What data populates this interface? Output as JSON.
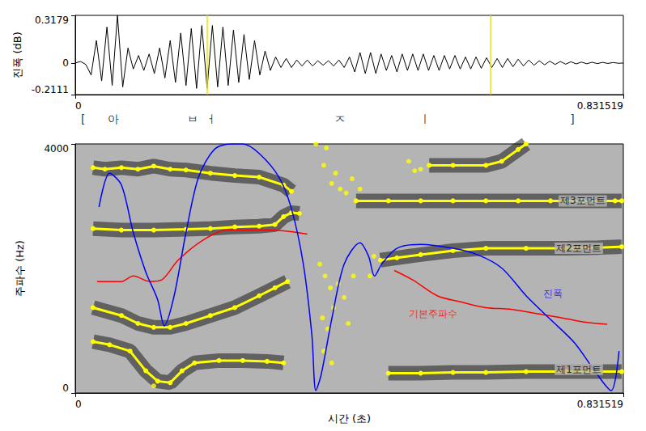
{
  "chart_data": [
    {
      "type": "line",
      "ylabel": "진폭 (dB)",
      "xlim": [
        0,
        0.831519
      ],
      "xticks": [
        0,
        0.831519
      ],
      "ylim": [
        -0.2111,
        0.3179
      ],
      "yticks": [
        -0.2111,
        0,
        0.3179
      ],
      "grid": false,
      "cursors": [
        0.203,
        0.629
      ],
      "transcription": [
        {
          "x": 0.012,
          "text": "["
        },
        {
          "x": 0.058,
          "text": "아"
        },
        {
          "x": 0.178,
          "text": "ㅂ"
        },
        {
          "x": 0.206,
          "text": "ㅓ"
        },
        {
          "x": 0.402,
          "text": "ㅈ"
        },
        {
          "x": 0.531,
          "text": "ㅣ"
        },
        {
          "x": 0.754,
          "text": "]"
        }
      ],
      "series": [
        {
          "color": "#000000",
          "line_style": "solid",
          "marker": "none",
          "x": [
            0,
            0.008,
            0.016,
            0.024,
            0.032,
            0.04,
            0.048,
            0.056,
            0.064,
            0.072,
            0.08,
            0.088,
            0.096,
            0.104,
            0.112,
            0.12,
            0.128,
            0.136,
            0.144,
            0.152,
            0.16,
            0.168,
            0.176,
            0.184,
            0.192,
            0.2,
            0.208,
            0.216,
            0.224,
            0.232,
            0.24,
            0.248,
            0.256,
            0.264,
            0.272,
            0.28,
            0.288,
            0.296,
            0.304,
            0.312,
            0.32,
            0.328,
            0.336,
            0.344,
            0.352,
            0.36,
            0.368,
            0.376,
            0.384,
            0.392,
            0.4,
            0.408,
            0.416,
            0.424,
            0.432,
            0.44,
            0.448,
            0.456,
            0.464,
            0.472,
            0.48,
            0.488,
            0.496,
            0.504,
            0.512,
            0.52,
            0.528,
            0.536,
            0.544,
            0.552,
            0.56,
            0.568,
            0.576,
            0.584,
            0.592,
            0.6,
            0.608,
            0.616,
            0.624,
            0.632,
            0.64,
            0.648,
            0.656,
            0.664,
            0.672,
            0.68,
            0.688,
            0.696,
            0.704,
            0.712,
            0.72,
            0.728,
            0.736,
            0.744,
            0.752,
            0.76,
            0.768,
            0.776,
            0.784,
            0.792,
            0.8,
            0.808,
            0.816,
            0.824,
            0.8315
          ],
          "values": [
            0,
            0.01,
            -0.01,
            -0.08,
            0.15,
            -0.12,
            0.24,
            -0.15,
            0.3179,
            -0.16,
            0.1,
            -0.04,
            0.05,
            -0.05,
            0.06,
            -0.07,
            0.1,
            -0.1,
            0.15,
            -0.13,
            0.2,
            -0.15,
            0.23,
            -0.17,
            0.25,
            -0.17,
            0.25,
            -0.16,
            0.24,
            -0.15,
            0.22,
            -0.13,
            0.19,
            -0.11,
            0.15,
            -0.08,
            0.08,
            -0.05,
            0.04,
            -0.03,
            0.03,
            -0.03,
            0.02,
            -0.02,
            0.02,
            -0.02,
            0.015,
            -0.015,
            0.015,
            -0.02,
            0.02,
            -0.03,
            0.04,
            -0.06,
            0.07,
            -0.07,
            0.07,
            -0.07,
            0.06,
            -0.05,
            0.05,
            -0.06,
            0.06,
            -0.05,
            0.06,
            -0.05,
            0.06,
            -0.05,
            0.05,
            -0.05,
            0.05,
            -0.04,
            0.05,
            -0.04,
            0.04,
            -0.04,
            0.04,
            -0.035,
            0.035,
            -0.03,
            0.03,
            -0.03,
            0.03,
            -0.025,
            0.025,
            -0.02,
            0.02,
            -0.015,
            0.015,
            -0.012,
            0.012,
            -0.01,
            0.01,
            -0.008,
            0.008,
            -0.006,
            0.006,
            -0.005,
            0.005,
            -0.004,
            0.004,
            -0.003,
            0.003,
            -0.002,
            0
          ]
        }
      ]
    },
    {
      "type": "line",
      "xlabel": "시간 (초)",
      "ylabel": "주파수 (Hz)",
      "xlim": [
        0,
        0.831519
      ],
      "xticks": [
        0,
        0.831519
      ],
      "ylim": [
        0,
        4000
      ],
      "yticks": [
        0,
        4000
      ],
      "grid": false,
      "annotations": [
        {
          "x": 0.77,
          "y": 3086,
          "text": "제3포먼트",
          "color": "#000000"
        },
        {
          "x": 0.764,
          "y": 2324,
          "text": "제2포먼트",
          "color": "#000000"
        },
        {
          "x": 0.764,
          "y": 381,
          "text": "제1포먼트",
          "color": "#000000"
        },
        {
          "x": 0.725,
          "y": 1600,
          "text": "진폭",
          "color": "#0000ff"
        },
        {
          "x": 0.543,
          "y": 1270,
          "text": "기본주파수",
          "color": "#ff0000"
        }
      ],
      "series": [
        {
          "type": "line",
          "color": "#ffff00",
          "marker": "circle",
          "line_style": "solid",
          "x": [
            0.027,
            0.045,
            0.07,
            0.095,
            0.119,
            0.144,
            0.168,
            0.205,
            0.242,
            0.279,
            0.316,
            0.328,
            0.42,
            0.537,
            0.573,
            0.623,
            0.647,
            0.672,
            0.684
          ],
          "values": [
            3619,
            3594,
            3619,
            3594,
            3644,
            3594,
            3581,
            3530,
            3492,
            3467,
            3340,
            3238,
            null,
            3657,
            3657,
            3657,
            3721,
            3911,
            4000
          ]
        },
        {
          "type": "line",
          "color": "#ffff00",
          "marker": "circle",
          "line_style": "solid",
          "x": [
            0.027,
            0.07,
            0.119,
            0.168,
            0.205,
            0.242,
            0.279,
            0.303,
            0.316,
            0.328,
            0.34,
            0.39,
            0.426,
            0.475,
            0.524,
            0.573,
            0.623,
            0.672,
            0.721,
            0.77,
            0.819,
            0.829
          ],
          "values": [
            2641,
            2616,
            2616,
            2629,
            2641,
            2667,
            2679,
            2705,
            2832,
            2895,
            2883,
            null,
            3086,
            3086,
            3086,
            3086,
            3086,
            3086,
            3086,
            3086,
            3086,
            3086
          ]
        },
        {
          "type": "line",
          "color": "#ffff00",
          "marker": "circle",
          "line_style": "solid",
          "x": [
            0.027,
            0.07,
            0.095,
            0.119,
            0.144,
            0.168,
            0.205,
            0.242,
            0.279,
            0.303,
            0.322,
            0.4,
            0.463,
            0.488,
            0.524,
            0.573,
            0.623,
            0.684,
            0.745,
            0.795,
            0.829
          ],
          "values": [
            1371,
            1244,
            1117,
            1054,
            1054,
            1117,
            1244,
            1371,
            1562,
            1689,
            1790,
            null,
            2133,
            2171,
            2222,
            2286,
            2324,
            2324,
            2324,
            2336,
            2349
          ]
        },
        {
          "type": "line",
          "color": "#ffff00",
          "marker": "circle",
          "line_style": "solid",
          "x": [
            0.027,
            0.052,
            0.083,
            0.107,
            0.125,
            0.144,
            0.162,
            0.181,
            0.218,
            0.254,
            0.291,
            0.316,
            0.4,
            0.475,
            0.524,
            0.573,
            0.623,
            0.684,
            0.745,
            0.795,
            0.829
          ],
          "values": [
            825,
            775,
            673,
            356,
            190,
            165,
            356,
            483,
            521,
            521,
            508,
            483,
            null,
            317,
            317,
            330,
            330,
            343,
            343,
            343,
            343
          ]
        },
        {
          "type": "scatter",
          "color": "#ffff00",
          "marker": "circle",
          "x": [
            0.365,
            0.381,
            0.377,
            0.389,
            0.395,
            0.402,
            0.411,
            0.42,
            0.432,
            0.371,
            0.379,
            0.387,
            0.375,
            0.383,
            0.392,
            0.399,
            0.408,
            0.414,
            0.422,
            0.377,
            0.389,
            0.447,
            0.453,
            0.506,
            0.515,
            0.524,
            0.119
          ],
          "values": [
            4000,
            3936,
            3657,
            3365,
            3530,
            3276,
            3213,
            3441,
            3276,
            2070,
            1879,
            1689,
            1206,
            1029,
            1371,
            1752,
            1536,
            1117,
            1879,
            673,
            483,
            1879,
            2197,
            3721,
            3568,
            3594,
            114
          ]
        },
        {
          "type": "line",
          "color": "#ff0000",
          "marker": "none",
          "line_style": "solid",
          "x": [
            0.033,
            0.07,
            0.088,
            0.113,
            0.131,
            0.156,
            0.193,
            0.23,
            0.279,
            0.316,
            0.352,
            0.42,
            0.484,
            0.512,
            0.549,
            0.586,
            0.623,
            0.659,
            0.696,
            0.733,
            0.77,
            0.807
          ],
          "values": [
            1790,
            1790,
            1879,
            1790,
            1816,
            2133,
            2451,
            2616,
            2616,
            2603,
            2552,
            null,
            1968,
            1816,
            1562,
            1460,
            1371,
            1346,
            1282,
            1219,
            1143,
            1105
          ]
        },
        {
          "type": "line",
          "color": "#0000ff",
          "marker": "none",
          "line_style": "solid",
          "x": [
            0.036,
            0.052,
            0.07,
            0.088,
            0.107,
            0.125,
            0.135,
            0.15,
            0.168,
            0.187,
            0.211,
            0.236,
            0.254,
            0.279,
            0.309,
            0.328,
            0.346,
            0.359,
            0.365,
            0.373,
            0.389,
            0.408,
            0.432,
            0.445,
            0.454,
            0.465,
            0.488,
            0.524,
            0.573,
            0.61,
            0.647,
            0.684,
            0.721,
            0.758,
            0.788,
            0.813,
            0.825
          ],
          "values": [
            2984,
            3530,
            3340,
            2578,
            1943,
            1498,
            1079,
            1562,
            2578,
            3467,
            3911,
            4000,
            4000,
            3848,
            3467,
            2959,
            2070,
            927,
            38,
            292,
            1181,
            2070,
            2413,
            2197,
            1879,
            2070,
            2324,
            2387,
            2324,
            2222,
            2006,
            1562,
            1181,
            800,
            356,
            38,
            673
          ]
        }
      ]
    }
  ]
}
